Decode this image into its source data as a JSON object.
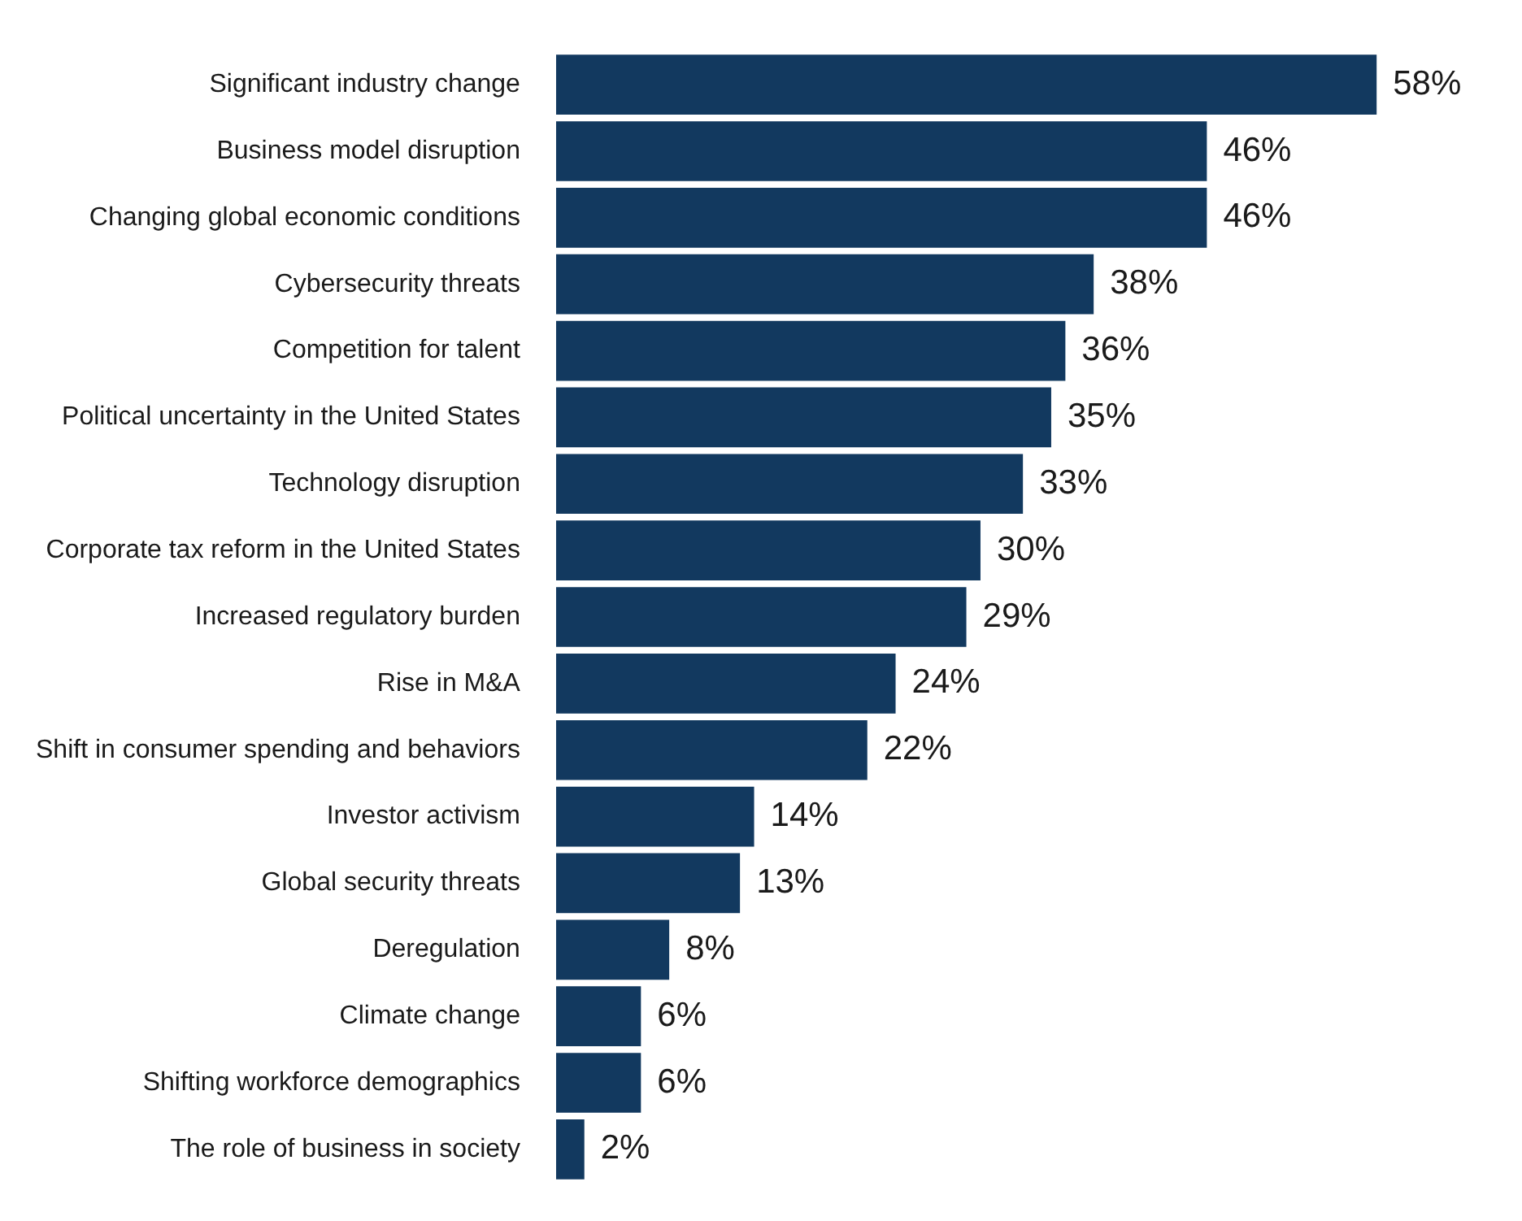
{
  "chart_data": {
    "type": "bar",
    "orientation": "horizontal",
    "categories": [
      "Significant industry change",
      "Business model disruption",
      "Changing global economic conditions",
      "Cybersecurity threats",
      "Competition for talent",
      "Political uncertainty in the United States",
      "Technology disruption",
      "Corporate tax reform in the United States",
      "Increased regulatory burden",
      "Rise in M&A",
      "Shift in consumer spending and behaviors",
      "Investor activism",
      "Global security threats",
      "Deregulation",
      "Climate change",
      "Shifting workforce demographics",
      "The role of business in society"
    ],
    "values": [
      58,
      46,
      46,
      38,
      36,
      35,
      33,
      30,
      29,
      24,
      22,
      14,
      13,
      8,
      6,
      6,
      2
    ],
    "value_labels": [
      "58%",
      "46%",
      "46%",
      "38%",
      "36%",
      "35%",
      "33%",
      "30%",
      "29%",
      "24%",
      "22%",
      "14%",
      "13%",
      "8%",
      "6%",
      "6%",
      "2%"
    ],
    "color": "#12395f",
    "grid": false,
    "legend": false,
    "tick_labels": "y"
  }
}
